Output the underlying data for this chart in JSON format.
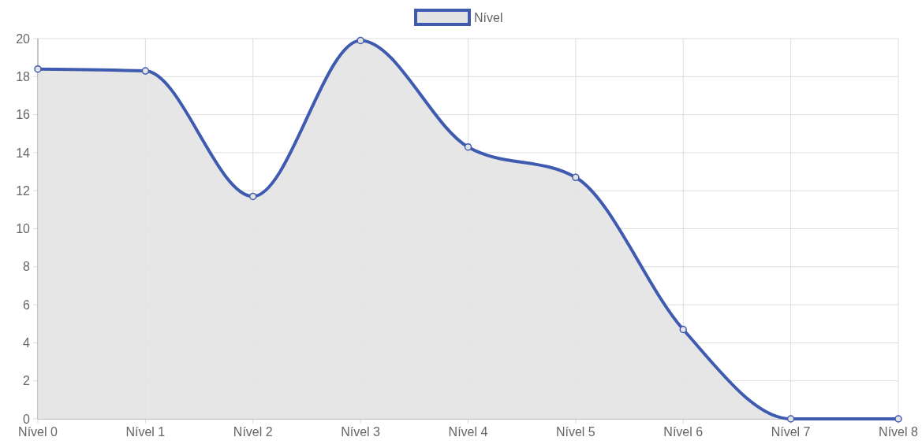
{
  "chart_data": {
    "type": "area",
    "categories": [
      "Nível 0",
      "Nível 1",
      "Nível 2",
      "Nível 3",
      "Nível 4",
      "Nível 5",
      "Nível 6",
      "Nível 7",
      "Nível 8"
    ],
    "series": [
      {
        "name": "Nível",
        "color": "#3f5bb0",
        "values": [
          18.4,
          18.3,
          11.7,
          19.9,
          14.3,
          12.7,
          4.7,
          0,
          0
        ]
      }
    ],
    "ylim": [
      0,
      20
    ],
    "yticks": [
      0,
      2,
      4,
      6,
      8,
      10,
      12,
      14,
      16,
      18,
      20
    ],
    "grid": true,
    "legend": "top",
    "marker": "circle"
  }
}
